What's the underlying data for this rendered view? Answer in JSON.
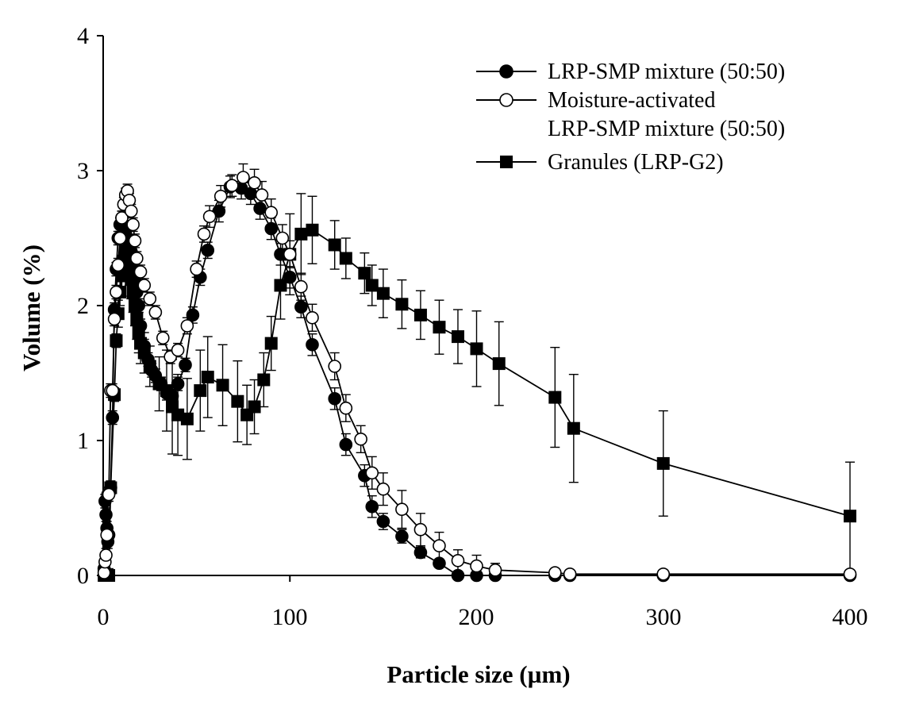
{
  "chart_data": {
    "type": "line",
    "title": "",
    "xlabel": "Particle size (µm)",
    "ylabel": "Volume (%)",
    "xlim": [
      0,
      400
    ],
    "ylim": [
      0,
      4
    ],
    "x_ticks": [
      "0",
      "100",
      "200",
      "300",
      "400"
    ],
    "y_ticks": [
      "0",
      "1",
      "2",
      "3",
      "4"
    ],
    "grid": false,
    "legend_position": "top-right",
    "legend_lines": {
      "moisture_activated_line2": "LRP-SMP mixture (50:50)"
    },
    "series": [
      {
        "name": "LRP-SMP mixture (50:50)",
        "marker": "filled-circle",
        "x": [
          0.5,
          1,
          1.5,
          2,
          2.5,
          3,
          4,
          5,
          6,
          7,
          8,
          9,
          10,
          11,
          12,
          13,
          14,
          15,
          16,
          17,
          18,
          19,
          20,
          22,
          24,
          26,
          28,
          31,
          34,
          37,
          40,
          44,
          48,
          52,
          56,
          62,
          68,
          74,
          79,
          84,
          90,
          95,
          100,
          106,
          112,
          124,
          130,
          140,
          144,
          150,
          160,
          170,
          180,
          190,
          200,
          210,
          242,
          250,
          300,
          400
        ],
        "y": [
          0.05,
          0.55,
          0.45,
          0.35,
          0.25,
          0.3,
          0.65,
          1.17,
          1.97,
          2.27,
          2.5,
          2.6,
          2.65,
          2.6,
          2.55,
          2.5,
          2.45,
          2.4,
          2.3,
          2.2,
          2.1,
          2.0,
          1.85,
          1.7,
          1.6,
          1.52,
          1.48,
          1.42,
          1.35,
          1.33,
          1.42,
          1.56,
          1.93,
          2.21,
          2.41,
          2.7,
          2.88,
          2.87,
          2.83,
          2.72,
          2.57,
          2.38,
          2.21,
          1.99,
          1.71,
          1.31,
          0.97,
          0.74,
          0.51,
          0.4,
          0.29,
          0.17,
          0.09,
          0.0,
          0.0,
          0.0,
          0.0,
          0.0,
          0.0,
          0.0
        ],
        "error": [
          0.05,
          0.05,
          0.05,
          0.05,
          0.05,
          0.05,
          0.05,
          0.05,
          0.05,
          0.05,
          0.05,
          0.05,
          0.05,
          0.05,
          0.05,
          0.05,
          0.05,
          0.05,
          0.05,
          0.05,
          0.05,
          0.05,
          0.05,
          0.05,
          0.05,
          0.05,
          0.05,
          0.05,
          0.05,
          0.05,
          0.05,
          0.05,
          0.06,
          0.06,
          0.06,
          0.08,
          0.08,
          0.08,
          0.08,
          0.08,
          0.08,
          0.08,
          0.08,
          0.08,
          0.08,
          0.08,
          0.08,
          0.08,
          0.08,
          0.06,
          0.05,
          0.04,
          0.03,
          0.02,
          0.02,
          0.02,
          0.02,
          0.02,
          0.02,
          0.02
        ]
      },
      {
        "name": "Moisture-activated",
        "marker": "open-circle",
        "x": [
          0.5,
          1,
          1.5,
          2,
          2.5,
          3,
          4,
          5,
          6,
          7,
          8,
          9,
          10,
          11,
          12,
          13,
          14,
          15,
          16,
          17,
          18,
          20,
          22,
          25,
          28,
          32,
          36,
          40,
          45,
          50,
          54,
          57,
          63,
          69,
          75,
          81,
          85,
          90,
          96,
          100,
          106,
          112,
          124,
          130,
          138,
          144,
          150,
          160,
          170,
          180,
          190,
          200,
          210,
          242,
          250,
          300,
          400
        ],
        "y": [
          0.02,
          0.1,
          0.15,
          0.3,
          0.6,
          0.6,
          1.37,
          1.37,
          1.9,
          2.1,
          2.3,
          2.5,
          2.65,
          2.75,
          2.82,
          2.85,
          2.78,
          2.7,
          2.6,
          2.48,
          2.35,
          2.25,
          2.15,
          2.05,
          1.95,
          1.76,
          1.62,
          1.67,
          1.85,
          2.27,
          2.53,
          2.66,
          2.81,
          2.89,
          2.95,
          2.91,
          2.82,
          2.69,
          2.5,
          2.38,
          2.14,
          1.91,
          1.55,
          1.24,
          1.01,
          0.76,
          0.64,
          0.49,
          0.34,
          0.22,
          0.11,
          0.07,
          0.04,
          0.02,
          0.01,
          0.01,
          0.01
        ],
        "error": [
          0.05,
          0.05,
          0.05,
          0.05,
          0.05,
          0.05,
          0.05,
          0.05,
          0.05,
          0.05,
          0.05,
          0.05,
          0.05,
          0.05,
          0.05,
          0.05,
          0.05,
          0.05,
          0.05,
          0.05,
          0.05,
          0.05,
          0.05,
          0.05,
          0.05,
          0.05,
          0.05,
          0.05,
          0.06,
          0.06,
          0.06,
          0.08,
          0.08,
          0.08,
          0.1,
          0.1,
          0.1,
          0.1,
          0.1,
          0.1,
          0.1,
          0.1,
          0.1,
          0.1,
          0.1,
          0.12,
          0.12,
          0.14,
          0.12,
          0.1,
          0.08,
          0.08,
          0.05,
          0.03,
          0.02,
          0.02,
          0.02
        ]
      },
      {
        "name": "Granules (LRP-G2)",
        "marker": "filled-square",
        "x": [
          0.5,
          3,
          4,
          6,
          7,
          8,
          9,
          10,
          11,
          12,
          13,
          14,
          15,
          16,
          17,
          18,
          19,
          20,
          22,
          25,
          30,
          34,
          37,
          40,
          45,
          52,
          56,
          64,
          72,
          77,
          81,
          86,
          90,
          95,
          100,
          106,
          112,
          124,
          130,
          140,
          144,
          150,
          160,
          170,
          180,
          190,
          200,
          212,
          242,
          252,
          300,
          400
        ],
        "y": [
          0.0,
          0.0,
          0.65,
          1.34,
          1.74,
          1.94,
          2.1,
          2.22,
          2.33,
          2.4,
          2.37,
          2.3,
          2.2,
          2.1,
          2.0,
          1.9,
          1.8,
          1.72,
          1.65,
          1.55,
          1.42,
          1.37,
          1.25,
          1.19,
          1.16,
          1.37,
          1.47,
          1.41,
          1.29,
          1.19,
          1.25,
          1.45,
          1.72,
          2.15,
          2.38,
          2.53,
          2.56,
          2.45,
          2.35,
          2.24,
          2.15,
          2.09,
          2.01,
          1.93,
          1.84,
          1.77,
          1.68,
          1.57,
          1.32,
          1.09,
          0.83,
          0.44
        ],
        "error": [
          0.05,
          0.05,
          0.05,
          0.05,
          0.05,
          0.1,
          0.1,
          0.15,
          0.15,
          0.15,
          0.15,
          0.15,
          0.15,
          0.15,
          0.15,
          0.15,
          0.15,
          0.15,
          0.15,
          0.15,
          0.2,
          0.3,
          0.35,
          0.3,
          0.3,
          0.3,
          0.3,
          0.3,
          0.3,
          0.22,
          0.2,
          0.2,
          0.2,
          0.25,
          0.3,
          0.3,
          0.25,
          0.18,
          0.15,
          0.15,
          0.15,
          0.18,
          0.18,
          0.18,
          0.2,
          0.2,
          0.28,
          0.31,
          0.37,
          0.4,
          0.39,
          0.4
        ]
      }
    ]
  }
}
